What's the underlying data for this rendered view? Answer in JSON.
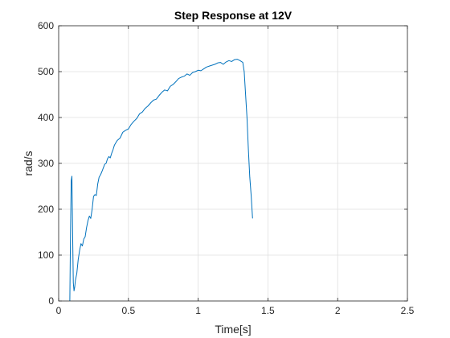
{
  "chart_data": {
    "type": "line",
    "title": "Step Response at 12V",
    "xlabel": "Time[s]",
    "ylabel": "rad/s",
    "xlim": [
      0,
      2.5
    ],
    "ylim": [
      0,
      600
    ],
    "xticks": [
      0,
      0.5,
      1,
      1.5,
      2,
      2.5
    ],
    "xtick_labels": [
      "0",
      "0.5",
      "1",
      "1.5",
      "2",
      "2.5"
    ],
    "yticks": [
      0,
      100,
      200,
      300,
      400,
      500,
      600
    ],
    "ytick_labels": [
      "0",
      "100",
      "200",
      "300",
      "400",
      "500",
      "600"
    ],
    "grid": true,
    "legend": false,
    "series": [
      {
        "color": "#0072BD",
        "x": [
          0.08,
          0.085,
          0.09,
          0.095,
          0.1,
          0.105,
          0.11,
          0.115,
          0.12,
          0.13,
          0.14,
          0.15,
          0.16,
          0.17,
          0.18,
          0.19,
          0.2,
          0.21,
          0.22,
          0.23,
          0.24,
          0.25,
          0.26,
          0.27,
          0.28,
          0.29,
          0.3,
          0.31,
          0.32,
          0.33,
          0.34,
          0.35,
          0.36,
          0.37,
          0.38,
          0.39,
          0.4,
          0.42,
          0.44,
          0.46,
          0.48,
          0.5,
          0.52,
          0.54,
          0.56,
          0.58,
          0.6,
          0.62,
          0.64,
          0.66,
          0.68,
          0.7,
          0.72,
          0.74,
          0.76,
          0.78,
          0.8,
          0.82,
          0.84,
          0.86,
          0.88,
          0.9,
          0.92,
          0.94,
          0.96,
          0.98,
          1.0,
          1.02,
          1.04,
          1.06,
          1.08,
          1.1,
          1.12,
          1.14,
          1.16,
          1.18,
          1.2,
          1.22,
          1.24,
          1.26,
          1.28,
          1.3,
          1.32,
          1.33,
          1.34,
          1.35,
          1.36,
          1.37,
          1.38,
          1.39
        ],
        "y": [
          0,
          150,
          262,
          272,
          150,
          40,
          22,
          30,
          45,
          60,
          90,
          110,
          125,
          120,
          135,
          140,
          160,
          175,
          185,
          180,
          200,
          228,
          232,
          230,
          255,
          270,
          275,
          282,
          290,
          298,
          300,
          310,
          315,
          312,
          322,
          330,
          340,
          350,
          355,
          368,
          372,
          375,
          385,
          392,
          398,
          408,
          412,
          420,
          425,
          432,
          438,
          440,
          448,
          455,
          460,
          458,
          468,
          472,
          478,
          485,
          488,
          490,
          495,
          492,
          498,
          500,
          503,
          502,
          506,
          510,
          512,
          514,
          516,
          519,
          520,
          516,
          521,
          524,
          522,
          526,
          527,
          524,
          520,
          500,
          450,
          400,
          330,
          270,
          230,
          180
        ]
      }
    ]
  }
}
